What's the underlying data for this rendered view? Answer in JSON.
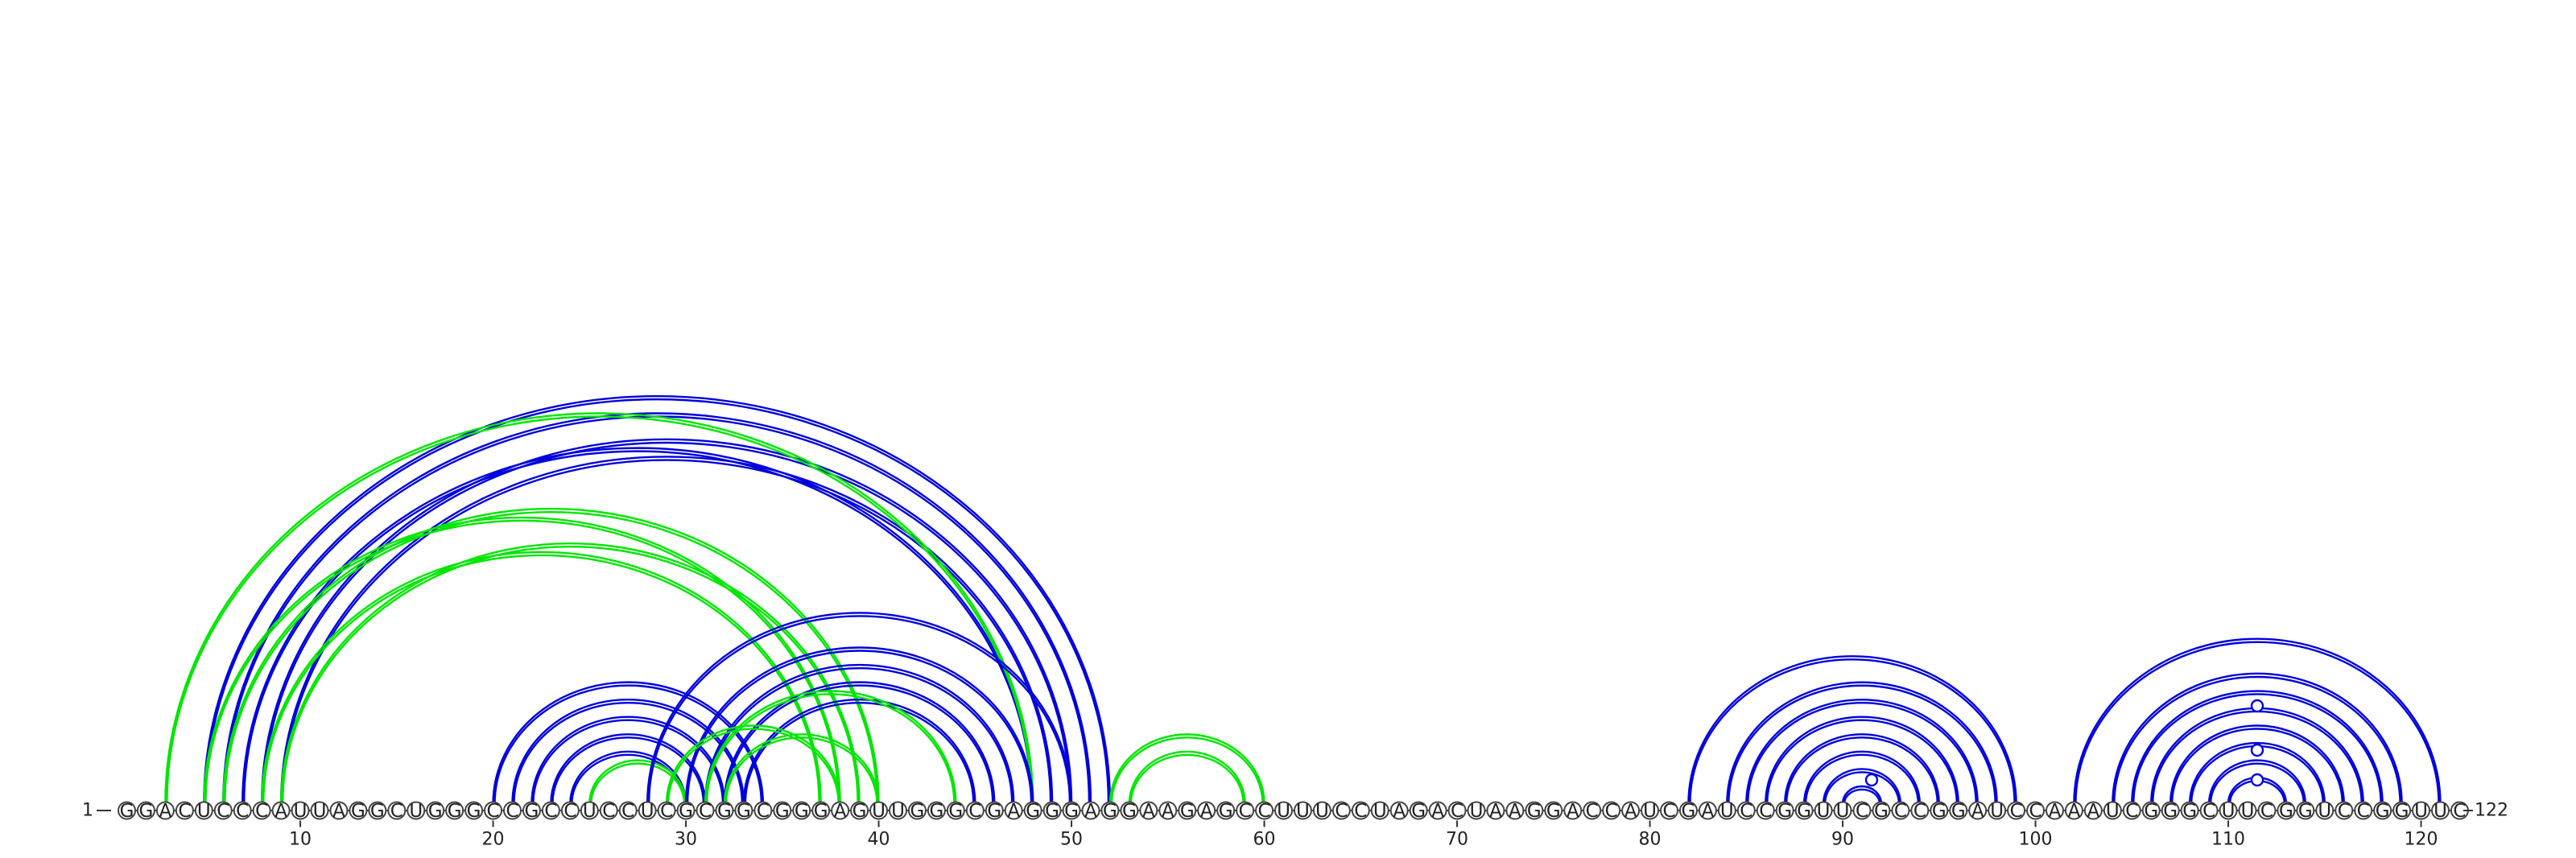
{
  "diagram": {
    "type": "rna-arc-diagram",
    "sequence": "GGACUCCCAUUAGGCUGGGCCGCCUCCUCGCGGCGGGAGUUGGGCGAGGGAGGAAGAGCCUUUCCUAGACUAAGGACCAUCGAUCCGGUUCGCCGGAUCCAAAUCGGGCUUCGGUCCGGUUC",
    "length": 122,
    "start_label": "1",
    "end_label": "122",
    "ticks": [
      "10",
      "20",
      "30",
      "40",
      "50",
      "60",
      "70",
      "80",
      "90",
      "100",
      "110",
      "120"
    ],
    "colors": {
      "primary": "#0000dd",
      "alternate": "#00e600",
      "backbone": "#444444"
    },
    "arc_groups": [
      {
        "color": "primary",
        "pairs": [
          [
            5,
            52
          ],
          [
            6,
            51
          ],
          [
            8,
            50
          ],
          [
            9,
            49
          ],
          [
            7,
            48
          ]
        ]
      },
      {
        "color": "alternate",
        "pairs": [
          [
            3,
            48
          ],
          [
            5,
            38
          ],
          [
            6,
            40
          ],
          [
            8,
            37
          ],
          [
            9,
            39
          ]
        ]
      },
      {
        "color": "primary",
        "pairs": [
          [
            20,
            34
          ],
          [
            21,
            33
          ],
          [
            22,
            32
          ],
          [
            23,
            31
          ],
          [
            24,
            30
          ]
        ]
      },
      {
        "color": "alternate",
        "pairs": [
          [
            25,
            30
          ]
        ]
      },
      {
        "color": "primary",
        "pairs": [
          [
            28,
            50
          ],
          [
            30,
            48
          ],
          [
            31,
            47
          ],
          [
            32,
            46
          ],
          [
            33,
            45
          ]
        ]
      },
      {
        "color": "alternate",
        "pairs": [
          [
            29,
            38
          ],
          [
            31,
            44
          ],
          [
            32,
            40
          ]
        ]
      },
      {
        "color": "alternate",
        "pairs": [
          [
            52,
            60
          ],
          [
            53,
            59
          ]
        ]
      },
      {
        "color": "primary",
        "pairs": [
          [
            82,
            99
          ],
          [
            84,
            98
          ],
          [
            85,
            97
          ],
          [
            86,
            96
          ],
          [
            87,
            95
          ],
          [
            88,
            94
          ],
          [
            89,
            93
          ],
          [
            90,
            92
          ]
        ]
      },
      {
        "color": "primary",
        "pairs": [
          [
            102,
            121
          ],
          [
            104,
            119
          ],
          [
            105,
            118
          ],
          [
            106,
            117
          ],
          [
            107,
            116
          ],
          [
            108,
            115
          ],
          [
            109,
            114
          ],
          [
            110,
            113
          ]
        ]
      }
    ],
    "loop_markers": [
      91,
      111,
      111,
      111
    ]
  }
}
